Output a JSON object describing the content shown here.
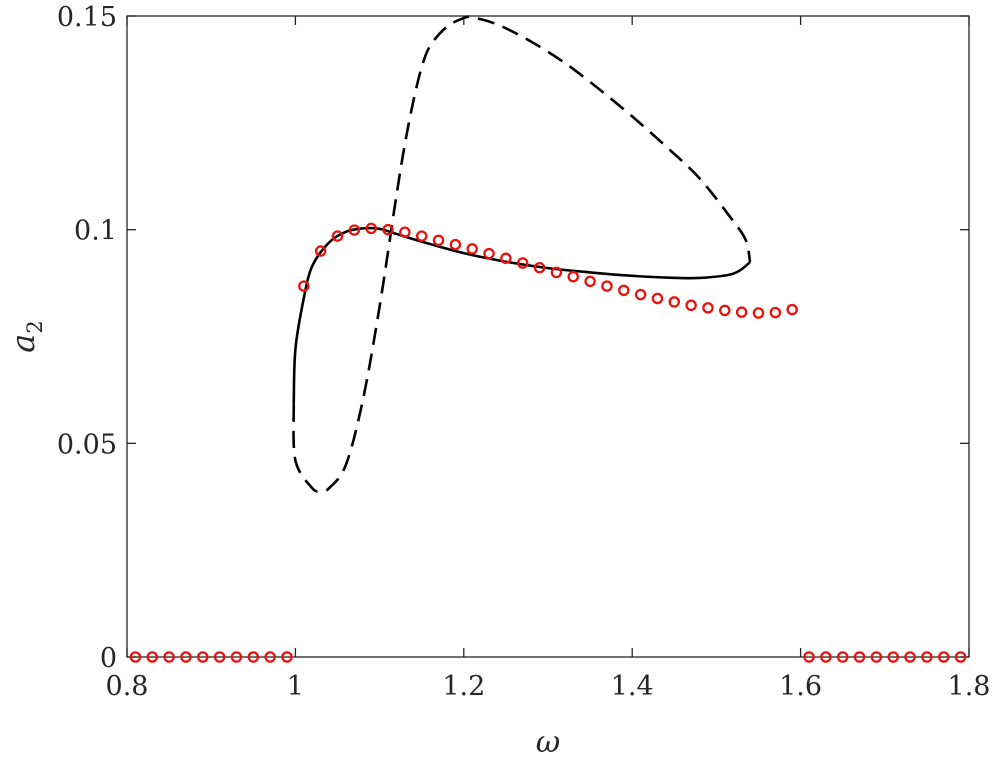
{
  "chart_data": {
    "type": "line",
    "xlabel": "ω",
    "ylabel_main": "a",
    "ylabel_sub": "2",
    "xlim": [
      0.8,
      1.8
    ],
    "ylim": [
      0,
      0.15
    ],
    "xticks": [
      0.8,
      1.0,
      1.2,
      1.4,
      1.6,
      1.8
    ],
    "xtick_labels": [
      "0.8",
      "1",
      "1.2",
      "1.4",
      "1.6",
      "1.8"
    ],
    "yticks": [
      0,
      0.05,
      0.1,
      0.15
    ],
    "ytick_labels": [
      "0",
      "0.05",
      "0.1",
      "0.15"
    ],
    "grid": false,
    "colors": {
      "curve": "#000000",
      "markers": "#e8120c",
      "axes": "#262626"
    },
    "series": [
      {
        "style": "solid",
        "x": [
          1.54,
          1.52,
          1.48,
          1.44,
          1.4,
          1.35,
          1.3,
          1.25,
          1.2,
          1.15,
          1.12,
          1.1,
          1.08,
          1.06,
          1.04,
          1.02,
          1.01,
          1.0,
          0.998
        ],
        "y": [
          0.0924,
          0.0897,
          0.0887,
          0.0888,
          0.0892,
          0.09,
          0.091,
          0.0925,
          0.0945,
          0.0972,
          0.099,
          0.1002,
          0.1003,
          0.0995,
          0.097,
          0.0915,
          0.084,
          0.072,
          0.059
        ]
      },
      {
        "style": "dashed",
        "x": [
          0.998,
          1.0,
          1.02,
          1.03,
          1.04,
          1.06,
          1.08,
          1.1,
          1.12,
          1.13,
          1.14,
          1.15,
          1.16,
          1.18,
          1.2,
          1.21,
          1.24,
          1.28,
          1.32,
          1.36,
          1.4,
          1.44,
          1.48,
          1.52,
          1.535,
          1.54
        ],
        "y": [
          0.059,
          0.046,
          0.0395,
          0.0389,
          0.0395,
          0.045,
          0.06,
          0.082,
          0.108,
          0.12,
          0.13,
          0.138,
          0.143,
          0.1475,
          0.1495,
          0.1497,
          0.148,
          0.144,
          0.139,
          0.133,
          0.1265,
          0.1195,
          0.112,
          0.102,
          0.0975,
          0.0924
        ]
      },
      {
        "style": "markers",
        "x": [
          0.81,
          0.83,
          0.85,
          0.87,
          0.89,
          0.91,
          0.93,
          0.95,
          0.97,
          0.99,
          1.01,
          1.03,
          1.05,
          1.07,
          1.09,
          1.11,
          1.13,
          1.15,
          1.17,
          1.19,
          1.21,
          1.23,
          1.25,
          1.27,
          1.29,
          1.31,
          1.33,
          1.35,
          1.37,
          1.39,
          1.41,
          1.43,
          1.45,
          1.47,
          1.49,
          1.51,
          1.53,
          1.55,
          1.57,
          1.59,
          1.61,
          1.63,
          1.65,
          1.67,
          1.69,
          1.71,
          1.73,
          1.75,
          1.77,
          1.79
        ],
        "y": [
          0,
          0,
          0,
          0,
          0,
          0,
          0,
          0,
          0,
          0,
          0.0868,
          0.095,
          0.0985,
          0.0999,
          0.1003,
          0.1,
          0.0994,
          0.0985,
          0.0975,
          0.0965,
          0.0955,
          0.0944,
          0.0933,
          0.0922,
          0.0911,
          0.09,
          0.089,
          0.0879,
          0.0868,
          0.0858,
          0.0848,
          0.0839,
          0.0831,
          0.0823,
          0.0817,
          0.0811,
          0.0807,
          0.0805,
          0.0806,
          0.0813,
          0,
          0,
          0,
          0,
          0,
          0,
          0,
          0,
          0,
          0
        ]
      }
    ]
  }
}
